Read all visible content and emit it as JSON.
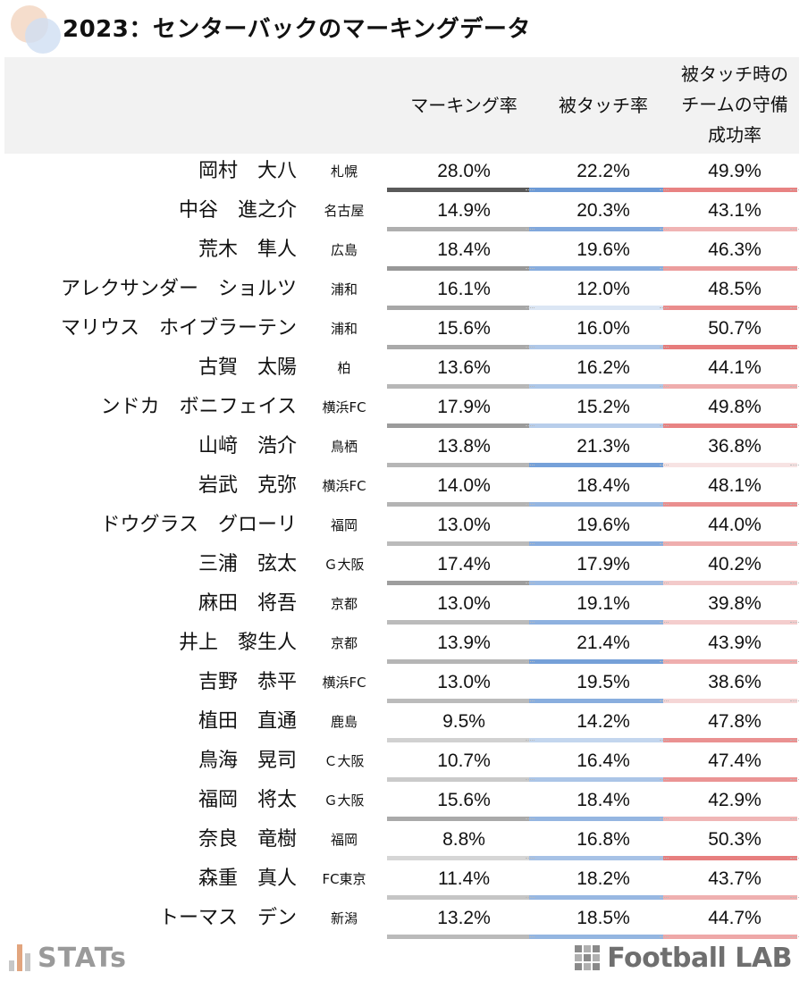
{
  "title": "2023：センターバックのマーキングデータ",
  "headers": {
    "marking_rate": "マーキング率",
    "touched_rate": "被タッチ率",
    "team_defense_success": "被タッチ時の\nチームの守備\n成功率"
  },
  "colors": {
    "marking_bar_max": "#5a5a5a",
    "marking_bar_min": "#d6d6d6",
    "touched_bar_max": "#6c9ad6",
    "touched_bar_min": "#dbe6f4",
    "defense_bar_max": "#e77c7c",
    "defense_bar_min": "#f7e3e3",
    "header_bg": "#f2f2f2"
  },
  "players": [
    {
      "name": "岡村　大八",
      "club": "札幌",
      "marking": "28.0%",
      "touched": "22.2%",
      "defense": "49.9%"
    },
    {
      "name": "中谷　進之介",
      "club": "名古屋",
      "marking": "14.9%",
      "touched": "20.3%",
      "defense": "43.1%"
    },
    {
      "name": "荒木　隼人",
      "club": "広島",
      "marking": "18.4%",
      "touched": "19.6%",
      "defense": "46.3%"
    },
    {
      "name": "アレクサンダー　ショルツ",
      "club": "浦和",
      "marking": "16.1%",
      "touched": "12.0%",
      "defense": "48.5%"
    },
    {
      "name": "マリウス　ホイブラーテン",
      "club": "浦和",
      "marking": "15.6%",
      "touched": "16.0%",
      "defense": "50.7%"
    },
    {
      "name": "古賀　太陽",
      "club": "柏",
      "marking": "13.6%",
      "touched": "16.2%",
      "defense": "44.1%"
    },
    {
      "name": "ンドカ　ボニフェイス",
      "club": "横浜FC",
      "marking": "17.9%",
      "touched": "15.2%",
      "defense": "49.8%"
    },
    {
      "name": "山﨑　浩介",
      "club": "鳥栖",
      "marking": "13.8%",
      "touched": "21.3%",
      "defense": "36.8%"
    },
    {
      "name": "岩武　克弥",
      "club": "横浜FC",
      "marking": "14.0%",
      "touched": "18.4%",
      "defense": "48.1%"
    },
    {
      "name": "ドウグラス　グローリ",
      "club": "福岡",
      "marking": "13.0%",
      "touched": "19.6%",
      "defense": "44.0%"
    },
    {
      "name": "三浦　弦太",
      "club": "Ｇ大阪",
      "marking": "17.4%",
      "touched": "17.9%",
      "defense": "40.2%"
    },
    {
      "name": "麻田　将吾",
      "club": "京都",
      "marking": "13.0%",
      "touched": "19.1%",
      "defense": "39.8%"
    },
    {
      "name": "井上　黎生人",
      "club": "京都",
      "marking": "13.9%",
      "touched": "21.4%",
      "defense": "43.9%"
    },
    {
      "name": "吉野　恭平",
      "club": "横浜FC",
      "marking": "13.0%",
      "touched": "19.5%",
      "defense": "38.6%"
    },
    {
      "name": "植田　直通",
      "club": "鹿島",
      "marking": "9.5%",
      "touched": "14.2%",
      "defense": "47.8%"
    },
    {
      "name": "鳥海　晃司",
      "club": "Ｃ大阪",
      "marking": "10.7%",
      "touched": "16.4%",
      "defense": "47.4%"
    },
    {
      "name": "福岡　将太",
      "club": "Ｇ大阪",
      "marking": "15.6%",
      "touched": "18.4%",
      "defense": "42.9%"
    },
    {
      "name": "奈良　竜樹",
      "club": "福岡",
      "marking": "8.8%",
      "touched": "16.8%",
      "defense": "50.3%"
    },
    {
      "name": "森重　真人",
      "club": "FC東京",
      "marking": "11.4%",
      "touched": "18.2%",
      "defense": "43.7%"
    },
    {
      "name": "トーマス　デン",
      "club": "新潟",
      "marking": "13.2%",
      "touched": "18.5%",
      "defense": "44.7%"
    }
  ],
  "footer": {
    "stats_logo": "STATs",
    "flab_logo": "Football LAB"
  }
}
